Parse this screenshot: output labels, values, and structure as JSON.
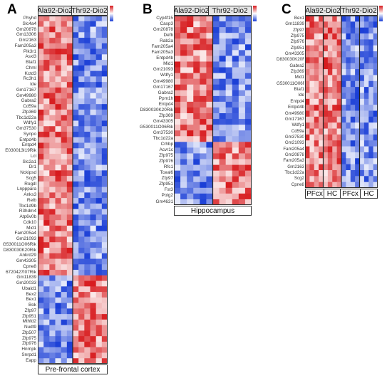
{
  "panels": [
    {
      "letter": "A",
      "groups": [
        "Ala92-Dio2",
        "Thr92-Dio2"
      ],
      "region": "Pre-frontal cortex",
      "n_cols": 12,
      "genes": [
        "Phyhd",
        "Slc4a4",
        "Gm20878",
        "Gm13306",
        "Gm2163",
        "Fam205a3",
        "Pik3r1",
        "Asxl3",
        "Btaf1",
        "Chml",
        "Kctd3",
        "Rc3h1",
        "Ide",
        "Gm17167",
        "Gm49980",
        "Gabra2",
        "Cd59a",
        "Zfp369",
        "Tbc1d22a",
        "Wdfy1",
        "Gm37530",
        "Synpo",
        "Entpd4b",
        "Entpd4",
        "E030013I19Rik",
        "Lcl",
        "Slc2a1",
        "Dr1",
        "Nckipsd",
        "Scg5",
        "Rogdl",
        "Lnpppara",
        "Anks3",
        "Relb",
        "Tbc1d9b",
        "R3hdm4",
        "Atp6v0b",
        "Cdk10",
        "Mid1",
        "Fam205a4",
        "Gm21093",
        "G530011O06Rik",
        "D830030K20Rik",
        "Ankrd29",
        "Gm43305",
        "Cpne8",
        "6720427I07Rik",
        "Gm11839",
        "Gm20033",
        "Ubald1",
        "Bex2",
        "Bex1",
        "Bok",
        "Zfp97",
        "Zfp951",
        "Mthfd2",
        "Nudt9",
        "Zfp507",
        "Zfp975",
        "Zfp976",
        "Hnrnpk",
        "Snrpd1",
        "Eapp"
      ]
    },
    {
      "letter": "B",
      "groups": [
        "Ala92-Dio2",
        "Thr92-Dio2"
      ],
      "region": "Hippocampus",
      "n_cols": 12,
      "genes": [
        "Cyp4f15",
        "Casp3",
        "Gm20878",
        "Defb",
        "Rab2a",
        "Fam205a4",
        "Fam205a3",
        "Entpd4b",
        "Mid1",
        "Gm21093",
        "Wdfy1",
        "Gm49980",
        "Gm17167",
        "Gabra2",
        "Ppm1h",
        "Entpd4",
        "D830030K20Rik",
        "Zfp369",
        "Gm43305",
        "G530011O06Rik",
        "Gm37530",
        "Tbc1d22a",
        "Crhbp",
        "Acvr1c",
        "Zfp975",
        "Zfp976",
        "Rfc1",
        "Tceal6",
        "Zfp97",
        "Zfp951",
        "Fst3",
        "Polg2",
        "Gm4631"
      ]
    },
    {
      "letter": "C",
      "groups": [
        "Ala92-Dio2",
        "Thr92-Dio2"
      ],
      "regions": [
        "PFcx",
        "HC",
        "PFcx",
        "HC"
      ],
      "n_cols": 16,
      "genes": [
        "Bex1",
        "Gm11839",
        "Zfp97",
        "Zfp975",
        "Zfp976",
        "Zfp951",
        "Gm43305",
        "D830030K20Rik",
        "Gabra2",
        "Zfp369",
        "Mid1",
        "G530011O06Rik",
        "Btaf1",
        "Ide",
        "Entpd4",
        "Entpd4b",
        "Gm49980",
        "Gm17167",
        "Wdfy1",
        "Cd59a",
        "Gm37530",
        "Gm21093",
        "Fam205a4",
        "Gm20878",
        "Fam205a3",
        "Gm2163",
        "Tbc1d22a",
        "Scg2",
        "Cpne8"
      ]
    }
  ],
  "colors": {
    "high": "#d7191c",
    "mid": "#ffffff",
    "low": "#1a3ed6"
  },
  "scale": {
    "hi_label": "2",
    "lo_label": "-2"
  }
}
